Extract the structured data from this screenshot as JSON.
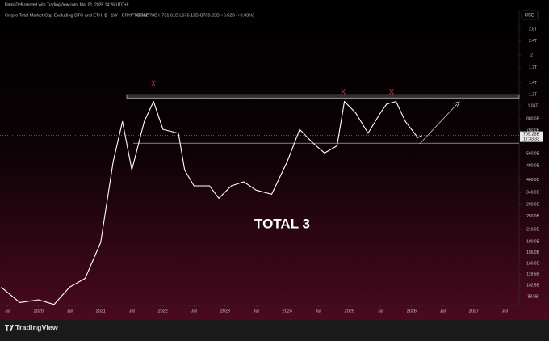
{
  "header": {
    "credit": "Dami-Defi created with TradingView.com, Mar 01, 2026 14:26 UTC+8",
    "symbol": "Crypto Total Market Cap Excluding BTC and ETH, $ · 1W · CRYPTOCAP",
    "ohlc": "O702.73B H731.61B L676.12B C709.23B +6.52B (+0.93%)",
    "currency": "USD"
  },
  "footer": {
    "brand": "TradingView"
  },
  "chart_data": {
    "type": "line",
    "log": true,
    "grid": false,
    "color": "#ffffff",
    "title": "TOTAL 3",
    "markers": [
      "X",
      "X",
      "X"
    ],
    "last_label": "709.23B",
    "countdown": "17:33:33",
    "resistance": [
      1150,
      1200
    ],
    "support": 642,
    "x": [
      2019.4,
      2019.7,
      2020.0,
      2020.25,
      2020.5,
      2020.75,
      2021.0,
      2021.2,
      2021.35,
      2021.5,
      2021.7,
      2021.85,
      2022.0,
      2022.25,
      2022.35,
      2022.5,
      2022.75,
      2022.9,
      2023.1,
      2023.3,
      2023.5,
      2023.75,
      2024.0,
      2024.2,
      2024.4,
      2024.6,
      2024.8,
      2024.92,
      2025.1,
      2025.3,
      2025.5,
      2025.6,
      2025.75,
      2025.9,
      2026.1,
      2026.17
    ],
    "values": [
      100,
      82,
      85,
      80,
      100,
      112,
      178,
      506,
      850,
      454,
      850,
      1100,
      767,
      730,
      454,
      370,
      370,
      315,
      370,
      390,
      350,
      332,
      506,
      767,
      650,
      565,
      620,
      1100,
      950,
      730,
      950,
      1065,
      1100,
      850,
      690,
      709.23
    ],
    "xlim": [
      2019.38,
      2027.73
    ],
    "xticks": [
      {
        "value": 2019.5,
        "label": "Jul"
      },
      2020,
      {
        "value": 2020.5,
        "label": "Jul"
      },
      2021,
      {
        "value": 2021.5,
        "label": "Jul"
      },
      2022,
      {
        "value": 2022.5,
        "label": "Jul"
      },
      2023,
      {
        "value": 2023.5,
        "label": "Jul"
      },
      2024,
      {
        "value": 2024.5,
        "label": "Jul"
      },
      2025,
      {
        "value": 2025.5,
        "label": "Jul"
      },
      2026,
      {
        "value": 2026.5,
        "label": "Jul"
      },
      2027,
      {
        "value": 2027.5,
        "label": "Jul"
      }
    ],
    "ylim": [
      79,
      3044
    ],
    "yticks": [
      {
        "value": 2800,
        "label": "2.8T"
      },
      {
        "value": 2400,
        "label": "2.4T"
      },
      {
        "value": 2000,
        "label": "2T"
      },
      {
        "value": 1700,
        "label": "1.7T"
      },
      {
        "value": 1400,
        "label": "1.4T"
      },
      {
        "value": 1200,
        "label": "1.2T"
      },
      {
        "value": 1040,
        "label": "1.04T"
      },
      {
        "value": 880,
        "label": "880.0B"
      },
      {
        "value": 760,
        "label": "760.0B"
      },
      {
        "value": 560,
        "label": "560.0B"
      },
      {
        "value": 480,
        "label": "480.0B"
      },
      {
        "value": 400,
        "label": "400.0B"
      },
      {
        "value": 340,
        "label": "340.0B"
      },
      {
        "value": 290,
        "label": "290.0B"
      },
      {
        "value": 250,
        "label": "250.0B"
      },
      {
        "value": 210,
        "label": "210.0B"
      },
      {
        "value": 180,
        "label": "180.0B"
      },
      {
        "value": 156,
        "label": "156.0B"
      },
      {
        "value": 136,
        "label": "136.0B"
      },
      {
        "value": 118.5,
        "label": "118.5B"
      },
      {
        "value": 102.5,
        "label": "102.5B"
      },
      {
        "value": 88.5,
        "label": "88.5B"
      }
    ]
  }
}
